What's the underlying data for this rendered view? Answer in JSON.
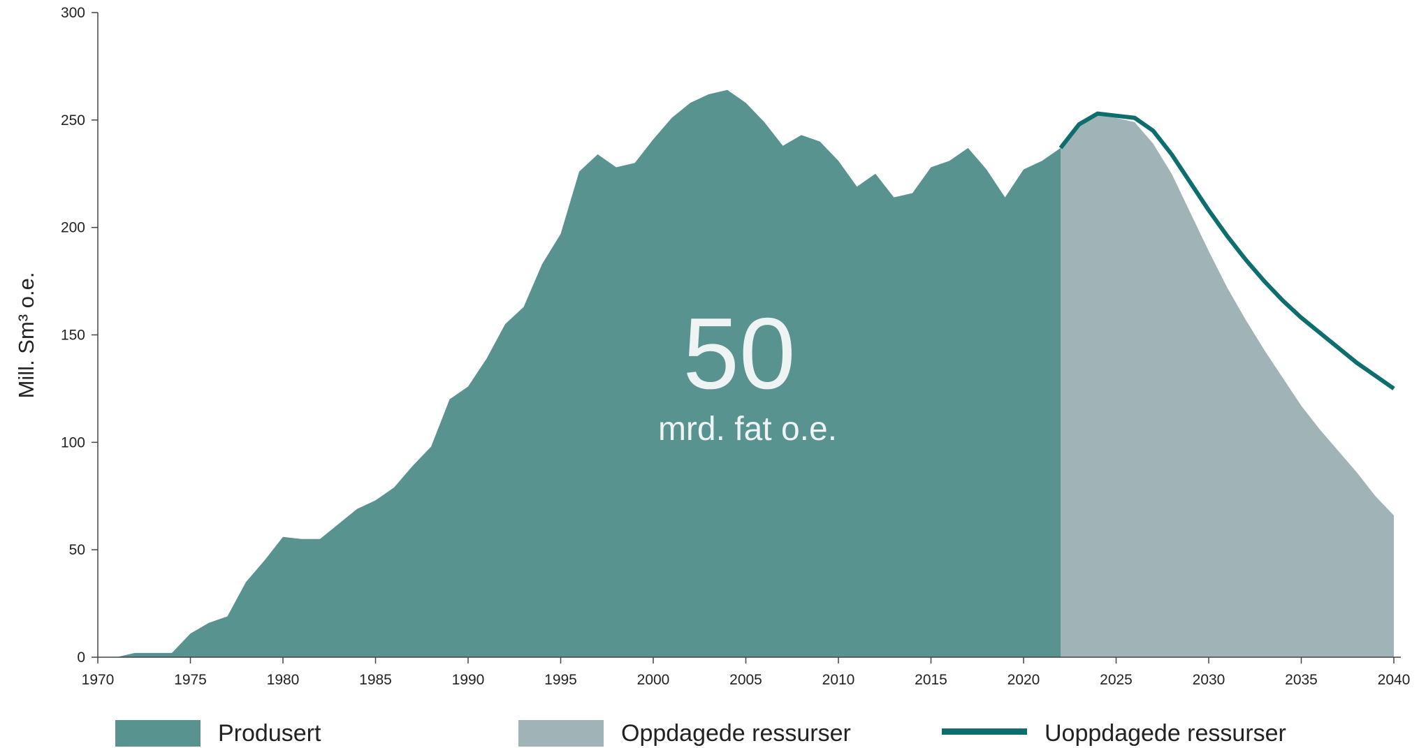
{
  "chart_data": {
    "type": "area",
    "y_label": "Mill. Sm³ o.e.",
    "annotations": [
      "50",
      "mrd. fat o.e."
    ],
    "xlim": [
      1970,
      2040
    ],
    "xticks": [
      1970,
      1975,
      1980,
      1985,
      1990,
      1995,
      2000,
      2005,
      2010,
      2015,
      2020,
      2025,
      2030,
      2035,
      2040
    ],
    "ylim": [
      0,
      300
    ],
    "yticks": [
      0,
      50,
      100,
      150,
      200,
      250,
      300
    ],
    "series": [
      {
        "name": "Produsert",
        "color": "#58938f",
        "kind": "area",
        "x": [
          1971,
          1972,
          1973,
          1974,
          1975,
          1976,
          1977,
          1978,
          1979,
          1980,
          1981,
          1982,
          1983,
          1984,
          1985,
          1986,
          1987,
          1988,
          1989,
          1990,
          1991,
          1992,
          1993,
          1994,
          1995,
          1996,
          1997,
          1998,
          1999,
          2000,
          2001,
          2002,
          2003,
          2004,
          2005,
          2006,
          2007,
          2008,
          2009,
          2010,
          2011,
          2012,
          2013,
          2014,
          2015,
          2016,
          2017,
          2018,
          2019,
          2020,
          2021,
          2022
        ],
        "values": [
          0,
          2,
          2,
          2,
          11,
          16,
          19,
          35,
          45,
          56,
          55,
          55,
          62,
          69,
          73,
          79,
          89,
          98,
          120,
          126,
          139,
          155,
          163,
          183,
          197,
          226,
          234,
          228,
          230,
          241,
          251,
          258,
          262,
          264,
          258,
          249,
          238,
          243,
          240,
          231,
          219,
          225,
          214,
          216,
          228,
          231,
          237,
          227,
          214,
          227,
          231,
          237
        ]
      },
      {
        "name": "Oppdagede ressurser",
        "color": "#a0b4b7",
        "kind": "area",
        "x": [
          2022,
          2023,
          2024,
          2025,
          2026,
          2027,
          2028,
          2029,
          2030,
          2031,
          2032,
          2033,
          2034,
          2035,
          2036,
          2037,
          2038,
          2039,
          2040
        ],
        "values": [
          237,
          247,
          252,
          251,
          249,
          239,
          225,
          207,
          189,
          172,
          157,
          143,
          130,
          117,
          106,
          96,
          86,
          75,
          66
        ]
      },
      {
        "name": "Uoppdagede ressurser",
        "color": "#0e6e6e",
        "kind": "line",
        "x": [
          2022,
          2023,
          2024,
          2025,
          2026,
          2027,
          2028,
          2029,
          2030,
          2031,
          2032,
          2033,
          2034,
          2035,
          2036,
          2037,
          2038,
          2039,
          2040
        ],
        "values": [
          237,
          248,
          253,
          252,
          251,
          245,
          234,
          221,
          208,
          196,
          185,
          175,
          166,
          158,
          151,
          144,
          137,
          131,
          125
        ]
      }
    ]
  }
}
